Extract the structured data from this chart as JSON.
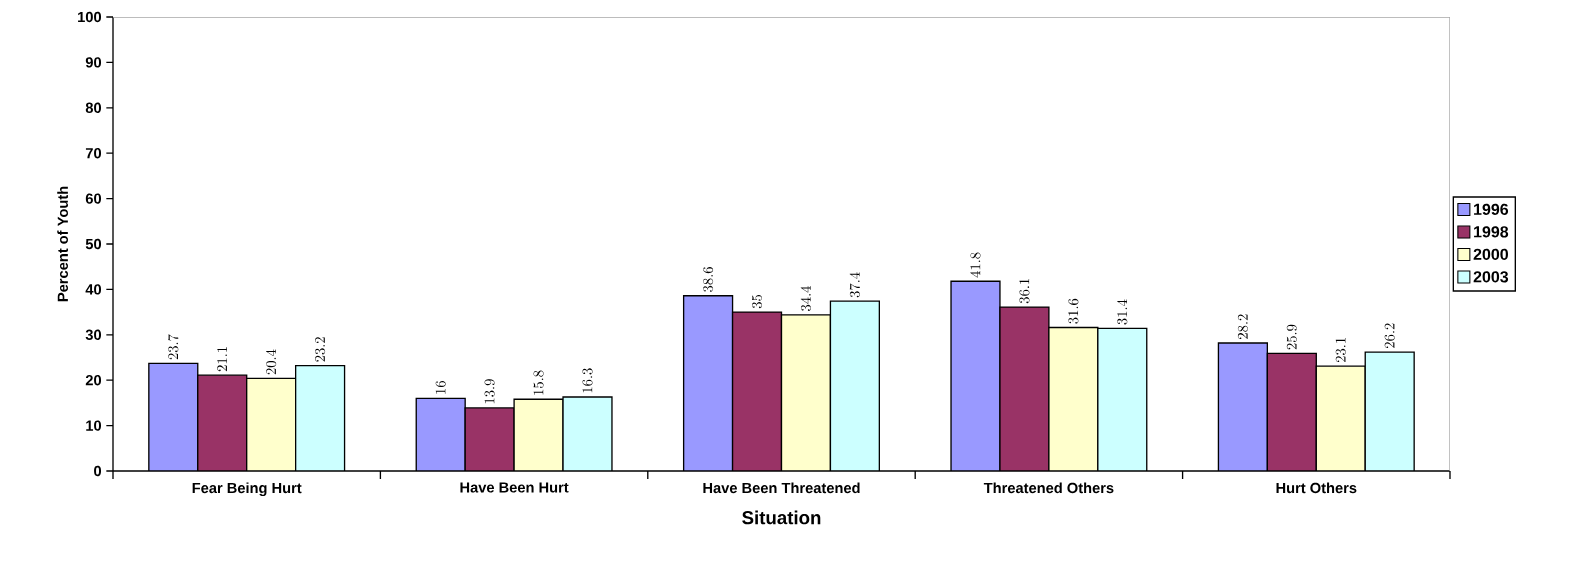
{
  "chart_data": {
    "type": "bar",
    "xlabel": "Situation",
    "ylabel": "Percent of Youth",
    "categories": [
      "Fear Being Hurt",
      "Have Been Hurt",
      "Have Been Threatened",
      "Threatened Others",
      "Hurt Others"
    ],
    "series": [
      {
        "name": "1996",
        "color": "#9999ff",
        "values": [
          23.7,
          16,
          38.6,
          41.8,
          28.2
        ]
      },
      {
        "name": "1998",
        "color": "#993366",
        "values": [
          21.1,
          13.9,
          35,
          36.1,
          25.9
        ]
      },
      {
        "name": "2000",
        "color": "#ffffcc",
        "values": [
          20.4,
          15.8,
          34.4,
          31.6,
          23.1
        ]
      },
      {
        "name": "2003",
        "color": "#ccffff",
        "values": [
          23.2,
          16.3,
          37.4,
          31.4,
          26.2
        ]
      }
    ],
    "ylim": [
      0,
      100
    ],
    "yticks": [
      0,
      10,
      20,
      30,
      40,
      50,
      60,
      70,
      80,
      90,
      100
    ],
    "data_labels": true,
    "legend": "right"
  }
}
